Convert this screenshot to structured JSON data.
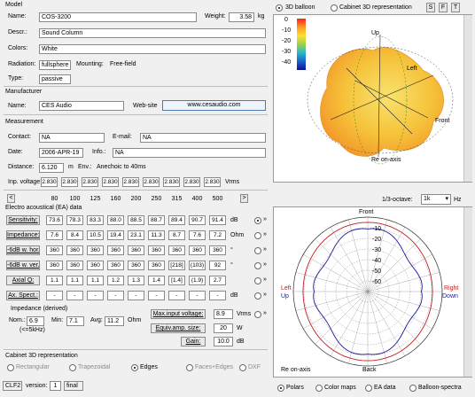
{
  "model": {
    "section": "Model",
    "name_label": "Name:",
    "name": "COS-3200",
    "weight_label": "Weight:",
    "weight": "3.58",
    "weight_unit": "kg",
    "descr_label": "Descr.:",
    "descr": "Sound Column",
    "colors_label": "Colors:",
    "colors": "White",
    "radiation_label": "Radiation:",
    "radiation": "fullsphere",
    "mounting_label": "Mounting:",
    "mounting": "Free-field",
    "type_label": "Type:",
    "type": "passive"
  },
  "manufacturer": {
    "section": "Manufacturer",
    "name_label": "Name:",
    "name": "CES Audio",
    "website_label": "Web-site",
    "website": "www.cesaudio.com"
  },
  "measurement": {
    "section": "Measurement",
    "contact_label": "Contact:",
    "contact": "NA",
    "email_label": "E-mail:",
    "email": "NA",
    "date_label": "Date:",
    "date": "2006-APR-19",
    "info_label": "Info.:",
    "info": "NA",
    "distance_label": "Distance:",
    "distance": "6.120",
    "distance_unit": "m",
    "env_label": "Env.:",
    "env": "Anechoic to 40ms",
    "inp_label": "Inp. voltage:",
    "inp_values": [
      "2.830",
      "2.830",
      "2.830",
      "2.830",
      "2.830",
      "2.830",
      "2.830",
      "2.830",
      "2.830"
    ],
    "inp_unit": "Vrms"
  },
  "freq_nav": {
    "prev": "<",
    "next": ">",
    "freqs": [
      "80",
      "100",
      "125",
      "160",
      "200",
      "250",
      "315",
      "400",
      "500"
    ]
  },
  "ea": {
    "section": "Electro acoustical (EA) data",
    "rows": [
      {
        "label": "Sensitivity:",
        "values": [
          "73.6",
          "78.3",
          "83.3",
          "88.0",
          "88.5",
          "88.7",
          "89.4",
          "90.7",
          "91.4"
        ],
        "unit": "dB",
        "radio_on": true
      },
      {
        "label": "Impedance:",
        "values": [
          "7.6",
          "8.4",
          "10.5",
          "19.4",
          "23.1",
          "11.3",
          "8.7",
          "7.6",
          "7.2"
        ],
        "unit": "Ohm",
        "radio_on": false
      },
      {
        "label": "-6dB w. hor.:",
        "values": [
          "360",
          "360",
          "360",
          "360",
          "360",
          "360",
          "360",
          "360",
          "360"
        ],
        "unit": "°",
        "radio_on": false
      },
      {
        "label": "-6dB w. ver.:",
        "values": [
          "360",
          "360",
          "360",
          "360",
          "360",
          "360",
          "[218]",
          "(103)",
          "92"
        ],
        "unit": "°",
        "radio_on": false
      },
      {
        "label": "Axial Q:",
        "values": [
          "1.1",
          "1.1",
          "1.1",
          "1.2",
          "1.3",
          "1.4",
          "[1.4]",
          "(1.9)",
          "2.7"
        ],
        "unit": "",
        "radio_on": false
      },
      {
        "label": "Ax. Spect.:",
        "values": [
          "-",
          "-",
          "-",
          "-",
          "-",
          "-",
          "-",
          "-",
          "-"
        ],
        "unit": "dB",
        "radio_on": false
      }
    ],
    "arrow": "»"
  },
  "impedance": {
    "section": "Impedance (derived)",
    "nom_label": "Nom.:",
    "nom": "6.9",
    "min_label": "Min:",
    "min": "7.1",
    "avg_label": "Avg:",
    "avg": "11.2",
    "ohm": "Ohm",
    "note": "(<=5kHz)"
  },
  "amp": {
    "max_label": "Max.input voltage:",
    "max": "8.9",
    "max_unit": "Vrms",
    "equiv_label": "Equiv.amp. size:",
    "equiv": "20",
    "equiv_unit": "W",
    "gain_label": "Gain:",
    "gain": "10.0",
    "gain_unit": "dB"
  },
  "cab3d": {
    "section": "Cabinet 3D representation",
    "options": [
      {
        "label": "Rectangular",
        "on": false,
        "enabled": false
      },
      {
        "label": "Trapezoidal",
        "on": false,
        "enabled": false
      },
      {
        "label": "Edges",
        "on": true,
        "enabled": true
      },
      {
        "label": "Faces+Edges",
        "on": false,
        "enabled": false
      },
      {
        "label": "DXF",
        "on": false,
        "enabled": false
      }
    ]
  },
  "status": {
    "format": "CLF2",
    "version_label": "version:",
    "version": "1",
    "state": "final"
  },
  "top_right": {
    "opt_balloon": "3D balloon",
    "opt_cabinet": "Cabinet 3D representation",
    "btn_s": "S",
    "btn_f": "F",
    "btn_t": "T",
    "scale": [
      "0",
      "-10",
      "-20",
      "-30",
      "-40"
    ],
    "labels": {
      "up": "Up",
      "left": "Left",
      "front": "Front",
      "re": "Re on-axis"
    },
    "colors": {
      "balloon": "#f6c23a",
      "balloon_dark": "#f39a2a",
      "balloon_light": "#f8e36e"
    }
  },
  "polar": {
    "octave_label": "1/3-octave:",
    "octave_value": "1k",
    "unit": "Hz",
    "labels": {
      "front": "Front",
      "back": "Back",
      "left": "Left",
      "up": "Up",
      "right": "Right",
      "down": "Down",
      "re": "Re on-axis"
    },
    "rings": [
      "-10",
      "-20",
      "-30",
      "-40",
      "-50",
      "-60"
    ],
    "colors": {
      "hor": "#c02020",
      "ver": "#1a1a9a"
    }
  },
  "bottom_tabs": [
    {
      "label": "Polars",
      "on": true
    },
    {
      "label": "Color maps",
      "on": false
    },
    {
      "label": "EA data",
      "on": false
    },
    {
      "label": "Balloon-spectra",
      "on": false
    }
  ]
}
